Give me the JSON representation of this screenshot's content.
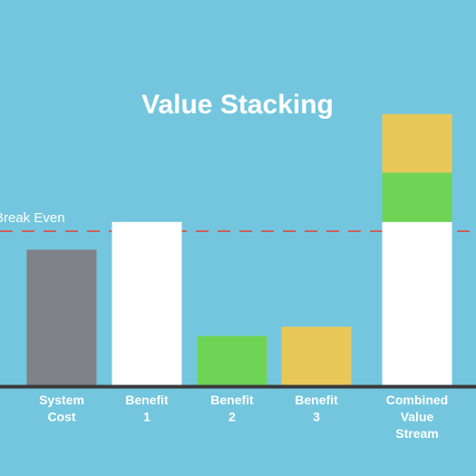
{
  "chart_data": {
    "type": "bar",
    "title": "Value Stacking",
    "xlabel": "",
    "ylabel": "",
    "ylim": [
      0,
      100
    ],
    "grid": false,
    "reference_line": {
      "label": "Break Even",
      "value": 50,
      "color": "#c9605d",
      "style": "dashed"
    },
    "categories": [
      {
        "label": [
          "System",
          "Cost"
        ]
      },
      {
        "label": [
          "Benefit",
          "1"
        ]
      },
      {
        "label": [
          "Benefit",
          "2"
        ]
      },
      {
        "label": [
          "Benefit",
          "3"
        ]
      },
      {
        "label": [
          "Combined",
          "Value",
          "Stream"
        ]
      }
    ],
    "bars": [
      {
        "segments": [
          {
            "value": 44,
            "color": "#808087"
          }
        ]
      },
      {
        "segments": [
          {
            "value": 53,
            "color": "#ffffff"
          }
        ]
      },
      {
        "segments": [
          {
            "value": 16,
            "color": "#6fd455"
          }
        ]
      },
      {
        "segments": [
          {
            "value": 19,
            "color": "#e9c85a"
          }
        ]
      },
      {
        "segments": [
          {
            "value": 53,
            "color": "#ffffff"
          },
          {
            "value": 16,
            "color": "#6fd455"
          },
          {
            "value": 19,
            "color": "#e9c85a"
          }
        ]
      }
    ],
    "colors": {
      "background": "#74c6de",
      "baseline": "#3a3a3a",
      "text": "#ffffff"
    }
  }
}
